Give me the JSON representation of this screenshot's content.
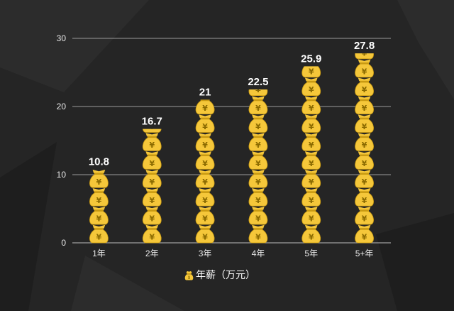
{
  "chart_data": {
    "type": "bar",
    "categories": [
      "1年",
      "2年",
      "3年",
      "4年",
      "5年",
      "5+年"
    ],
    "series": [
      {
        "name": "年薪（万元）",
        "values": [
          10.8,
          16.7,
          21,
          22.5,
          25.9,
          27.8
        ]
      }
    ],
    "data_labels": [
      "10.8",
      "16.7",
      "21",
      "22.5",
      "25.9",
      "27.8"
    ],
    "ylim": [
      0,
      30
    ],
    "yticks": [
      0,
      10,
      20,
      30
    ],
    "grid": true,
    "legend_position": "bottom",
    "bar_icon": "money-bag-yen-icon",
    "colors": {
      "bar": "#f5c73a",
      "bar_outline": "#c99a12",
      "symbol": "#8a6a00",
      "background": "#252525"
    }
  }
}
